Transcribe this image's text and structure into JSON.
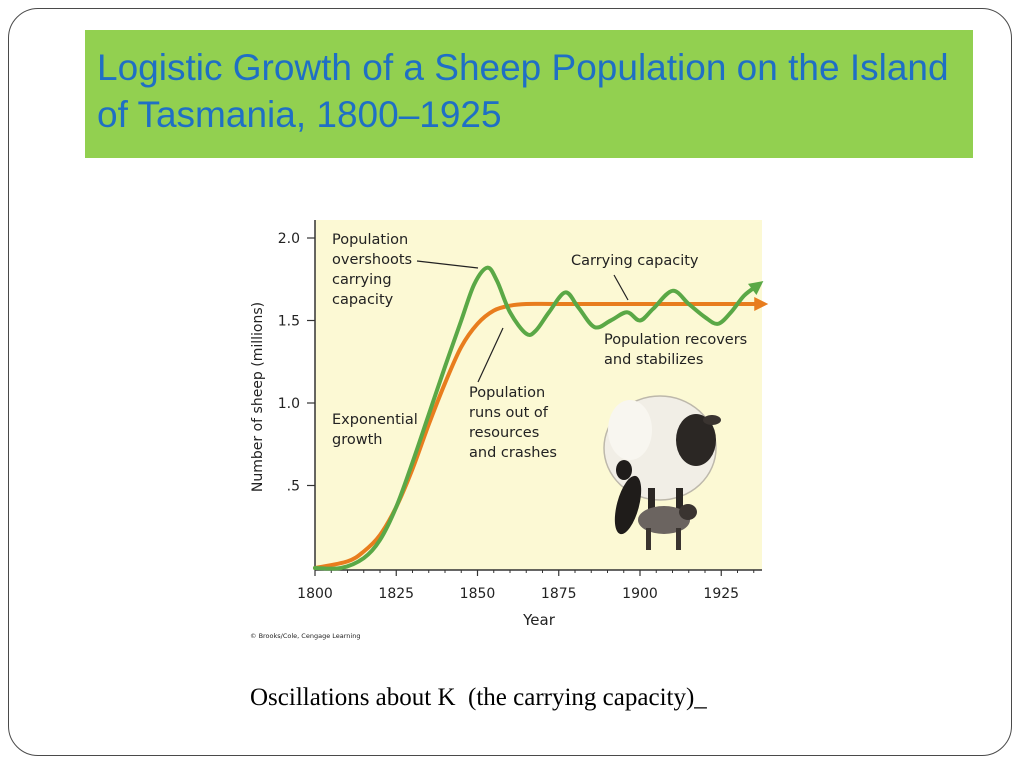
{
  "slide": {
    "title": "Logistic Growth of a Sheep Population on the Island of Tasmania, 1800–1925",
    "caption": "Oscillations about K  (the carrying capacity)_",
    "title_bg_color": "#92d050",
    "title_text_color": "#1f6fc5"
  },
  "chart_data": {
    "type": "line",
    "xlabel": "Year",
    "ylabel": "Number of sheep (millions)",
    "xlim": [
      1800,
      1940
    ],
    "ylim": [
      0,
      2.1
    ],
    "x_ticks": [
      1800,
      1825,
      1850,
      1875,
      1900,
      1925
    ],
    "y_ticks": [
      {
        "value": 0.5,
        "label": ".5"
      },
      {
        "value": 1.0,
        "label": "1.0"
      },
      {
        "value": 1.5,
        "label": "1.5"
      },
      {
        "value": 2.0,
        "label": "2.0"
      }
    ],
    "background_color": "#fcf9d4",
    "series": [
      {
        "color": "#e87d1e",
        "points": [
          [
            1800,
            0.0
          ],
          [
            1810,
            0.04
          ],
          [
            1815,
            0.1
          ],
          [
            1820,
            0.2
          ],
          [
            1825,
            0.37
          ],
          [
            1830,
            0.6
          ],
          [
            1835,
            0.87
          ],
          [
            1840,
            1.12
          ],
          [
            1845,
            1.34
          ],
          [
            1850,
            1.48
          ],
          [
            1855,
            1.56
          ],
          [
            1860,
            1.59
          ],
          [
            1865,
            1.6
          ],
          [
            1875,
            1.6
          ],
          [
            1900,
            1.6
          ],
          [
            1925,
            1.6
          ],
          [
            1937,
            1.6
          ]
        ],
        "arrow": true
      },
      {
        "color": "#5aa846",
        "points": [
          [
            1800,
            0.0
          ],
          [
            1808,
            0.0
          ],
          [
            1815,
            0.06
          ],
          [
            1820,
            0.17
          ],
          [
            1825,
            0.37
          ],
          [
            1830,
            0.64
          ],
          [
            1835,
            0.93
          ],
          [
            1840,
            1.22
          ],
          [
            1845,
            1.5
          ],
          [
            1849,
            1.72
          ],
          [
            1853,
            1.82
          ],
          [
            1856,
            1.74
          ],
          [
            1860,
            1.55
          ],
          [
            1865,
            1.42
          ],
          [
            1868,
            1.44
          ],
          [
            1872,
            1.55
          ],
          [
            1877,
            1.67
          ],
          [
            1881,
            1.58
          ],
          [
            1886,
            1.46
          ],
          [
            1891,
            1.5
          ],
          [
            1896,
            1.55
          ],
          [
            1900,
            1.5
          ],
          [
            1904,
            1.57
          ],
          [
            1910,
            1.68
          ],
          [
            1915,
            1.6
          ],
          [
            1920,
            1.52
          ],
          [
            1924,
            1.48
          ],
          [
            1928,
            1.55
          ],
          [
            1932,
            1.65
          ],
          [
            1936,
            1.71
          ]
        ],
        "arrow": true
      }
    ],
    "annotations": [
      {
        "text": "Population overshoots carrying capacity",
        "lines": [
          "Population",
          "overshoots",
          "carrying",
          "capacity"
        ]
      },
      {
        "text": "Carrying capacity",
        "lines": [
          "Carrying capacity"
        ]
      },
      {
        "text": "Population recovers and stabilizes",
        "lines": [
          "Population recovers",
          "and stabilizes"
        ]
      },
      {
        "text": "Exponential growth",
        "lines": [
          "Exponential",
          "growth"
        ]
      },
      {
        "text": "Population runs out of resources and crashes",
        "lines": [
          "Population",
          "runs out of",
          "resources",
          "and crashes"
        ]
      }
    ],
    "credit": "© Brooks/Cole, Cengage Learning"
  }
}
